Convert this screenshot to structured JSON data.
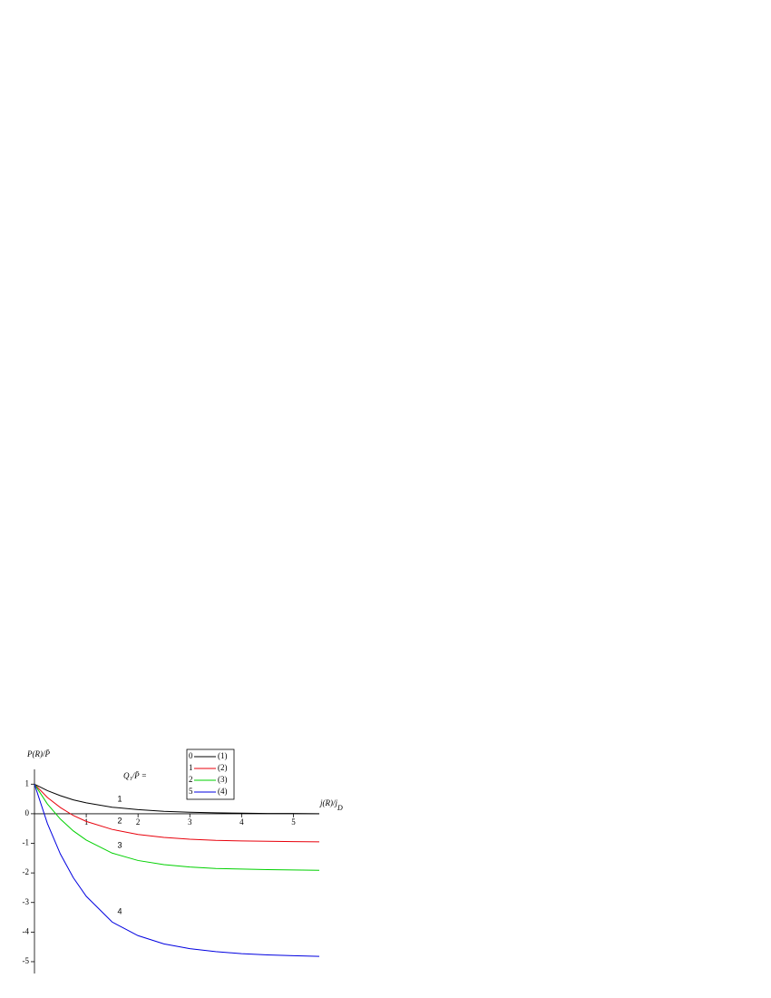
{
  "chart_data": {
    "type": "line",
    "ylabel": "P(R)/P̄",
    "xlabel": "j(R)/j",
    "xlabel_sub": "D",
    "annotation": "Q₁/P̄ =",
    "x": [
      0,
      0.25,
      0.5,
      0.75,
      1,
      1.5,
      2,
      2.5,
      3,
      3.5,
      4,
      4.5,
      5,
      5.5
    ],
    "series": [
      {
        "name": "(1)",
        "q": "0",
        "label": "1",
        "color": "#000000",
        "values": [
          1,
          0.78,
          0.61,
          0.47,
          0.37,
          0.22,
          0.14,
          0.08,
          0.05,
          0.03,
          0.02,
          0.01,
          0.01,
          0.0
        ]
      },
      {
        "name": "(2)",
        "q": "1",
        "label": "2",
        "color": "#e8000b",
        "values": [
          1,
          0.55,
          0.21,
          -0.06,
          -0.26,
          -0.53,
          -0.7,
          -0.8,
          -0.86,
          -0.9,
          -0.92,
          -0.93,
          -0.94,
          -0.95
        ]
      },
      {
        "name": "(3)",
        "q": "2",
        "label": "3",
        "color": "#00d000",
        "values": [
          1,
          0.33,
          -0.18,
          -0.58,
          -0.89,
          -1.33,
          -1.58,
          -1.72,
          -1.8,
          -1.85,
          -1.87,
          -1.89,
          -1.9,
          -1.91
        ]
      },
      {
        "name": "(4)",
        "q": "5",
        "label": "4",
        "color": "#0000e0",
        "values": [
          1,
          -0.33,
          -1.36,
          -2.16,
          -2.79,
          -3.66,
          -4.12,
          -4.4,
          -4.56,
          -4.66,
          -4.73,
          -4.77,
          -4.8,
          -4.82
        ]
      }
    ],
    "xlim": [
      0,
      5.5
    ],
    "ylim": [
      -5.4,
      1.5
    ],
    "xticks": [
      1,
      2,
      3,
      4,
      5
    ],
    "yticks": [
      -5,
      -4,
      -3,
      -2,
      -1,
      0,
      1
    ]
  }
}
